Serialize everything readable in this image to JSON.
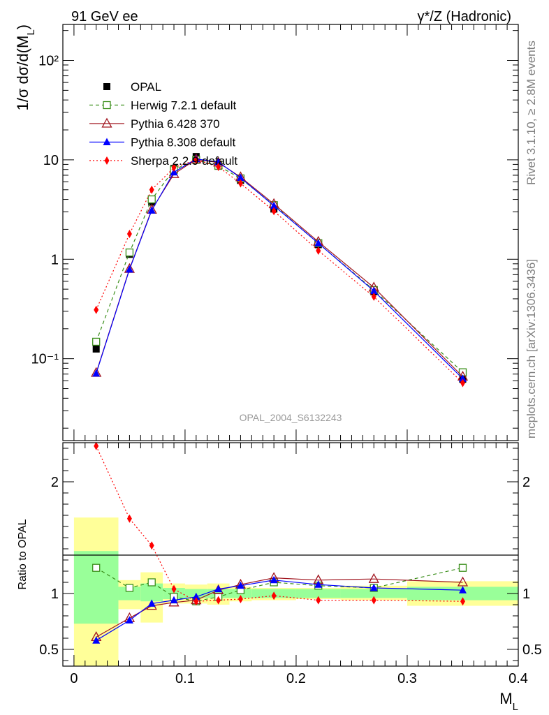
{
  "header": {
    "left": "91 GeV ee",
    "right": "γ*/Z (Hadronic)"
  },
  "side": {
    "rivet": "Rivet 3.1.10, ≥ 2.8M events",
    "mcplots": "mcplots.cern.ch [arXiv:1306.3436]"
  },
  "analysis_id": "OPAL_2004_S6132243",
  "colors": {
    "opal": "#000000",
    "herwig": "#3a8e1a",
    "pythia6": "#a0141e",
    "pythia8": "#0000ff",
    "sherpa": "#ff0000",
    "band_inner": "#99ff99",
    "band_outer": "#ffff99"
  },
  "chart_data": [
    {
      "type": "line",
      "panel": "main",
      "ylabel": "1/σ dσ/d(M_L)",
      "yscale": "log",
      "ylim": [
        0.015,
        230
      ],
      "xlim": [
        -0.01,
        0.4
      ],
      "y_ticks": [
        {
          "value": 0.1,
          "label": "10⁻¹"
        },
        {
          "value": 1,
          "label": "1"
        },
        {
          "value": 10,
          "label": "10"
        },
        {
          "value": 100,
          "label": "10²"
        }
      ],
      "x": [
        0.02,
        0.05,
        0.07,
        0.09,
        0.11,
        0.13,
        0.15,
        0.18,
        0.22,
        0.27,
        0.35
      ],
      "series": [
        {
          "name": "OPAL",
          "marker": "square-filled",
          "values": [
            0.125,
            1.12,
            3.75,
            8.2,
            10.8,
            9.0,
            6.2,
            3.2,
            1.4,
            0.47,
            0.062
          ]
        },
        {
          "name": "Herwig 7.2.1 default",
          "marker": "square-open",
          "style": "dashed",
          "values": [
            0.148,
            1.17,
            4.0,
            7.95,
            10.0,
            8.7,
            6.5,
            3.5,
            1.45,
            0.49,
            0.073
          ]
        },
        {
          "name": "Pythia 6.428 370",
          "marker": "triangle-open",
          "style": "solid",
          "values": [
            0.072,
            0.8,
            3.15,
            7.2,
            10.1,
            9.4,
            6.7,
            3.6,
            1.5,
            0.52,
            0.066
          ]
        },
        {
          "name": "Pythia 8.308 default",
          "marker": "triangle-filled",
          "style": "solid",
          "values": [
            0.071,
            0.79,
            3.1,
            7.5,
            10.2,
            9.5,
            6.6,
            3.45,
            1.45,
            0.48,
            0.063
          ]
        },
        {
          "name": "Sherpa 2.2.9 default",
          "marker": "diamond-filled",
          "style": "dotted",
          "values": [
            0.31,
            1.8,
            5.0,
            8.35,
            10.0,
            8.5,
            5.8,
            3.05,
            1.22,
            0.42,
            0.057
          ]
        }
      ]
    },
    {
      "type": "line",
      "panel": "ratio",
      "ylabel": "Ratio to OPAL",
      "xlabel": "M_L",
      "ylim": [
        0.35,
        2.35
      ],
      "xlim": [
        -0.01,
        0.4
      ],
      "y_ticks": [
        0.5,
        1,
        2
      ],
      "x_ticks": [
        0,
        0.1,
        0.2,
        0.3,
        0.4
      ],
      "x_tick_labels": [
        "0",
        "0.1",
        "0.2",
        "0.3",
        "0.4"
      ],
      "x": [
        0.02,
        0.05,
        0.07,
        0.09,
        0.11,
        0.13,
        0.15,
        0.18,
        0.22,
        0.27,
        0.35
      ],
      "bins": [
        [
          0,
          0.04
        ],
        [
          0.04,
          0.06
        ],
        [
          0.06,
          0.08
        ],
        [
          0.08,
          0.1
        ],
        [
          0.1,
          0.12
        ],
        [
          0.12,
          0.14
        ],
        [
          0.14,
          0.16
        ],
        [
          0.16,
          0.2
        ],
        [
          0.2,
          0.24
        ],
        [
          0.24,
          0.3
        ],
        [
          0.3,
          0.4
        ]
      ],
      "band_inner": [
        [
          0.73,
          1.38
        ],
        [
          0.94,
          1.06
        ],
        [
          0.93,
          1.09
        ],
        [
          0.95,
          1.05
        ],
        [
          0.96,
          1.04
        ],
        [
          0.96,
          1.04
        ],
        [
          0.96,
          1.04
        ],
        [
          0.96,
          1.04
        ],
        [
          0.96,
          1.04
        ],
        [
          0.96,
          1.04
        ],
        [
          0.94,
          1.06
        ]
      ],
      "band_outer": [
        [
          0.35,
          1.68
        ],
        [
          0.86,
          1.12
        ],
        [
          0.74,
          1.19
        ],
        [
          0.91,
          1.09
        ],
        [
          0.91,
          1.08
        ],
        [
          0.9,
          1.09
        ],
        [
          0.93,
          1.06
        ],
        [
          0.94,
          1.05
        ],
        [
          0.95,
          1.05
        ],
        [
          0.94,
          1.07
        ],
        [
          0.89,
          1.11
        ]
      ],
      "series": [
        {
          "name": "Herwig 7.2.1 default",
          "values": [
            1.23,
            1.05,
            1.1,
            0.97,
            0.93,
            0.97,
            1.03,
            1.1,
            1.07,
            1.05,
            1.23
          ]
        },
        {
          "name": "Pythia 6.428 370",
          "values": [
            0.61,
            0.78,
            0.89,
            0.92,
            0.94,
            1.03,
            1.08,
            1.14,
            1.12,
            1.13,
            1.1
          ]
        },
        {
          "name": "Pythia 8.308 default",
          "values": [
            0.58,
            0.76,
            0.91,
            0.94,
            0.97,
            1.04,
            1.07,
            1.12,
            1.08,
            1.05,
            1.03
          ]
        },
        {
          "name": "Sherpa 2.2.9 default",
          "values": [
            2.32,
            1.67,
            1.43,
            1.04,
            0.93,
            0.94,
            0.95,
            0.98,
            0.94,
            0.94,
            0.93
          ]
        }
      ]
    }
  ]
}
